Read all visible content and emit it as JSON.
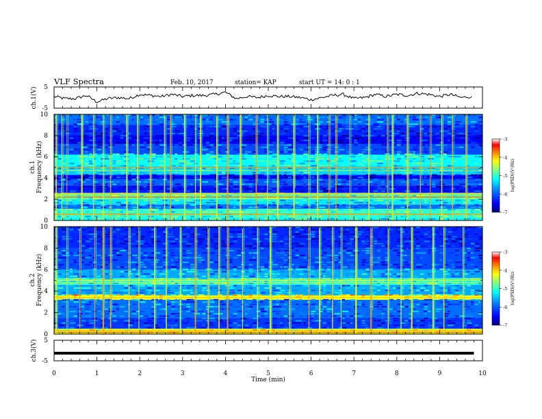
{
  "header": {
    "title": "VLF Spectra",
    "date": "Feb. 10, 2017",
    "station": "station= KAP",
    "start": "start UT = 14: 0 : 1"
  },
  "colors": {
    "trace": "#000000",
    "colormap": [
      "#00007f",
      "#0000ff",
      "#0080ff",
      "#00ffff",
      "#80ff80",
      "#ffff00",
      "#ff8000",
      "#ff0000",
      "#ffffff"
    ]
  },
  "colorbar": {
    "title": "log(PSD)(V²/Hz)",
    "ticks": [
      "-3",
      "-4",
      "-5",
      "-6",
      "-7"
    ],
    "range": [
      -7,
      -3
    ]
  },
  "chart_data": [
    {
      "type": "line",
      "ylabel": "ch.1(V)",
      "ylim": [
        -5,
        5
      ],
      "yticks": [
        "5",
        "-5"
      ],
      "xlim": [
        0,
        10
      ],
      "series": [
        {
          "x": [
            0,
            0.25,
            0.5,
            0.75,
            1.0,
            1.25,
            1.5,
            1.75,
            2.0,
            2.25,
            2.5,
            2.75,
            3.0,
            3.25,
            3.5,
            3.75,
            4.0,
            4.25,
            4.5,
            4.75,
            5.0,
            5.25,
            5.5,
            5.75,
            6.0,
            6.25,
            6.5,
            6.75,
            7.0,
            7.25,
            7.5,
            7.75,
            8.0,
            8.25,
            8.5,
            8.75,
            9.0,
            9.25,
            9.5,
            9.75
          ],
          "values": [
            0.5,
            -0.5,
            -0.5,
            1,
            -2,
            -0.5,
            0,
            -0.5,
            1.5,
            1,
            0.5,
            1.5,
            0.5,
            1,
            1,
            1.5,
            2.5,
            -0.5,
            0.5,
            0,
            1,
            0.5,
            0.5,
            0,
            -1,
            0,
            1,
            1.5,
            -0.5,
            0,
            1.5,
            0.5,
            1.5,
            1,
            2,
            1.5,
            0.5,
            1.5,
            0,
            0.5
          ]
        }
      ]
    },
    {
      "type": "heatmap",
      "ylabel": "ch.1 Frequency (kHz)",
      "ylim": [
        0,
        10
      ],
      "yticks": [
        "0",
        "2",
        "4",
        "6",
        "8",
        "10"
      ],
      "xlim": [
        0,
        10
      ],
      "zlim": [
        -7,
        -3
      ],
      "bands": [
        {
          "f": [
            0.0,
            0.3
          ],
          "level": -5.2
        },
        {
          "f": [
            0.3,
            1.1
          ],
          "level": -5.0
        },
        {
          "f": [
            1.1,
            1.5
          ],
          "level": -5.9
        },
        {
          "f": [
            1.5,
            2.0
          ],
          "level": -5.3
        },
        {
          "f": [
            2.0,
            2.6
          ],
          "level": -4.8
        },
        {
          "f": [
            2.6,
            3.3
          ],
          "level": -6.4
        },
        {
          "f": [
            3.3,
            3.9
          ],
          "level": -6.0
        },
        {
          "f": [
            3.9,
            4.3
          ],
          "level": -6.5
        },
        {
          "f": [
            4.3,
            5.1
          ],
          "level": -5.4
        },
        {
          "f": [
            5.1,
            6.2
          ],
          "level": -5.2
        },
        {
          "f": [
            6.2,
            7.2
          ],
          "level": -6.1
        },
        {
          "f": [
            7.2,
            8.0
          ],
          "level": -6.5
        },
        {
          "f": [
            8.0,
            9.0
          ],
          "level": -6.3
        },
        {
          "f": [
            9.0,
            10.0
          ],
          "level": -5.9
        }
      ],
      "lines": [
        {
          "f": 0.6,
          "level": -3.8
        },
        {
          "f": 2.2,
          "level": -3.6
        },
        {
          "f": 2.5,
          "level": -4.0
        },
        {
          "f": 4.7,
          "level": -4.6
        },
        {
          "f": 5.0,
          "level": -3.8
        }
      ],
      "bursts_min": [
        0.05,
        0.18,
        0.3,
        0.65,
        0.92,
        1.15,
        1.32,
        1.7,
        1.95,
        2.25,
        2.58,
        2.72,
        3.05,
        3.3,
        3.42,
        3.8,
        4.05,
        4.35,
        4.72,
        4.98,
        5.22,
        5.6,
        5.95,
        6.15,
        6.42,
        6.58,
        6.9,
        7.35,
        7.78,
        7.9,
        8.25,
        8.55,
        8.78,
        9.05,
        9.3,
        9.62
      ]
    },
    {
      "type": "heatmap",
      "ylabel": "ch.2 Frequency (kHz)",
      "ylim": [
        0,
        10
      ],
      "yticks": [
        "0",
        "2",
        "4",
        "6",
        "8",
        "10"
      ],
      "xlim": [
        0,
        10
      ],
      "zlim": [
        -7,
        -3
      ],
      "bands": [
        {
          "f": [
            0.0,
            0.5
          ],
          "level": -4.3
        },
        {
          "f": [
            0.5,
            1.5
          ],
          "level": -6.2
        },
        {
          "f": [
            1.5,
            3.2
          ],
          "level": -5.9
        },
        {
          "f": [
            3.2,
            3.6
          ],
          "level": -4.2
        },
        {
          "f": [
            3.6,
            4.6
          ],
          "level": -5.6
        },
        {
          "f": [
            4.6,
            5.2
          ],
          "level": -5.0
        },
        {
          "f": [
            5.2,
            6.0
          ],
          "level": -5.6
        },
        {
          "f": [
            6.0,
            8.0
          ],
          "level": -6.1
        },
        {
          "f": [
            8.0,
            10.0
          ],
          "level": -6.3
        }
      ],
      "lines": [
        {
          "f": 0.15,
          "level": -3.6
        },
        {
          "f": 0.3,
          "level": -3.9
        },
        {
          "f": 3.4,
          "level": -4.0
        },
        {
          "f": 4.8,
          "level": -4.6
        },
        {
          "f": 5.0,
          "level": -4.2
        }
      ],
      "bursts_min": [
        0.05,
        0.3,
        0.6,
        0.95,
        1.15,
        1.32,
        1.75,
        1.98,
        2.35,
        2.62,
        2.95,
        3.3,
        3.6,
        3.85,
        4.05,
        4.4,
        4.75,
        5.05,
        5.5,
        5.95,
        6.2,
        6.5,
        6.7,
        7.05,
        7.4,
        7.8,
        8.1,
        8.35,
        8.85,
        9.1,
        9.55
      ]
    },
    {
      "type": "line",
      "ylabel": "ch.3(V)",
      "ylim": [
        -5,
        5
      ],
      "yticks": [
        "5",
        "-5"
      ],
      "xlim": [
        0,
        10
      ],
      "xlabel": "Time (min)",
      "xticks": [
        "0",
        "1",
        "2",
        "3",
        "4",
        "5",
        "6",
        "7",
        "8",
        "9",
        "10"
      ],
      "series": [
        {
          "x": [
            0,
            9.8
          ],
          "values": [
            -1.3,
            -1.3
          ]
        }
      ]
    }
  ]
}
